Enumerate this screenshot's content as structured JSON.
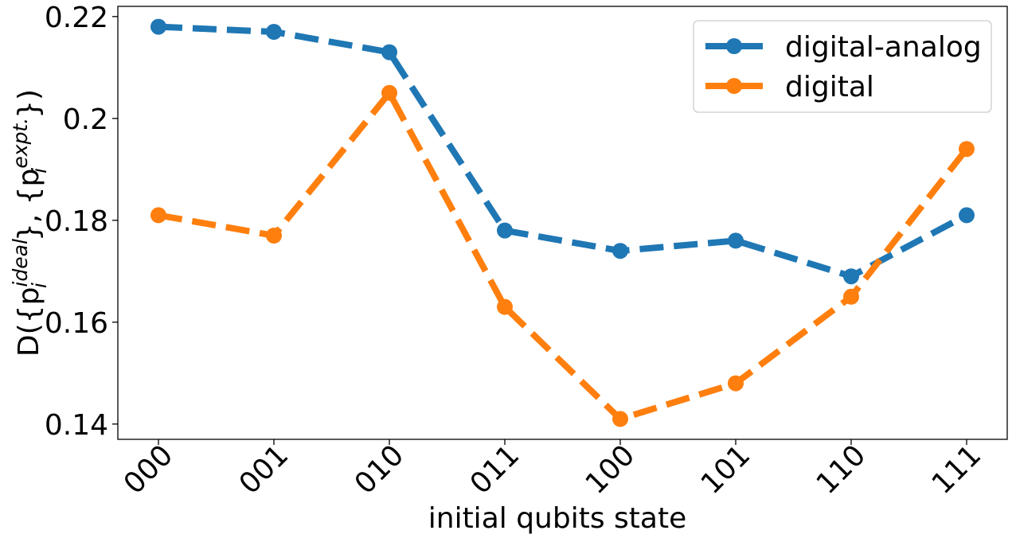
{
  "chart_data": {
    "type": "line",
    "categories": [
      "000",
      "001",
      "010",
      "011",
      "100",
      "101",
      "110",
      "111"
    ],
    "series": [
      {
        "name": "digital-analog",
        "color": "#1f77b4",
        "values": [
          0.218,
          0.217,
          0.213,
          0.178,
          0.174,
          0.176,
          0.169,
          0.181
        ]
      },
      {
        "name": "digital",
        "color": "#ff7f0e",
        "values": [
          0.181,
          0.177,
          0.205,
          0.163,
          0.141,
          0.148,
          0.165,
          0.194
        ]
      }
    ],
    "xlabel": "initial qubits state",
    "ylabel": {
      "prefix": "D({p",
      "sub1": "i",
      "sup1": "ideal",
      "middle": "}, {p",
      "sub2": "i",
      "sup2": "expt.",
      "suffix": "})"
    },
    "ylim": [
      0.137,
      0.222
    ],
    "yticks": [
      0.14,
      0.16,
      0.18,
      0.2,
      0.22
    ],
    "ytick_labels": [
      "0.14",
      "0.16",
      "0.18",
      "0.2",
      "0.22"
    ],
    "line_style": "dashed",
    "marker": "circle",
    "grid": false,
    "legend_position": "top-right"
  }
}
